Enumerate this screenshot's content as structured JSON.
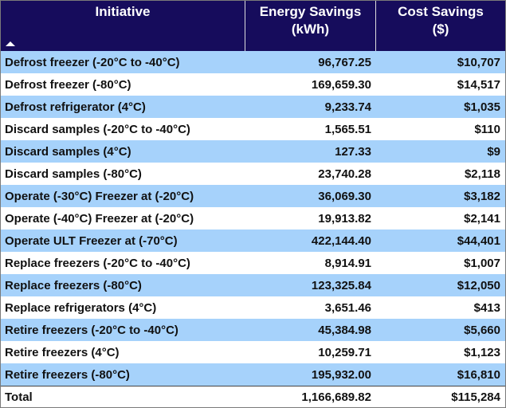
{
  "table": {
    "columns": [
      "Initiative",
      "Energy Savings\n(kWh)",
      "Cost Savings\n($)"
    ],
    "rows": [
      [
        "Defrost freezer (-20°C to -40°C)",
        "96,767.25",
        "$10,707"
      ],
      [
        "Defrost freezer (-80°C)",
        "169,659.30",
        "$14,517"
      ],
      [
        "Defrost refrigerator (4°C)",
        "9,233.74",
        "$1,035"
      ],
      [
        "Discard samples (-20°C to -40°C)",
        "1,565.51",
        "$110"
      ],
      [
        "Discard samples (4°C)",
        "127.33",
        "$9"
      ],
      [
        "Discard samples (-80°C)",
        "23,740.28",
        "$2,118"
      ],
      [
        "Operate (-30°C) Freezer at (-20°C)",
        "36,069.30",
        "$3,182"
      ],
      [
        "Operate (-40°C) Freezer at (-20°C)",
        "19,913.82",
        "$2,141"
      ],
      [
        "Operate ULT Freezer at (-70°C)",
        "422,144.40",
        "$44,401"
      ],
      [
        "Replace freezers (-20°C to -40°C)",
        "8,914.91",
        "$1,007"
      ],
      [
        "Replace freezers (-80°C)",
        "123,325.84",
        "$12,050"
      ],
      [
        "Replace refrigerators (4°C)",
        "3,651.46",
        "$413"
      ],
      [
        "Retire freezers (-20°C to -40°C)",
        "45,384.98",
        "$5,660"
      ],
      [
        "Retire freezers (4°C)",
        "10,259.71",
        "$1,123"
      ],
      [
        "Retire freezers (-80°C)",
        "195,932.00",
        "$16,810"
      ]
    ],
    "total": [
      "Total",
      "1,166,689.82",
      "$115,284"
    ]
  }
}
